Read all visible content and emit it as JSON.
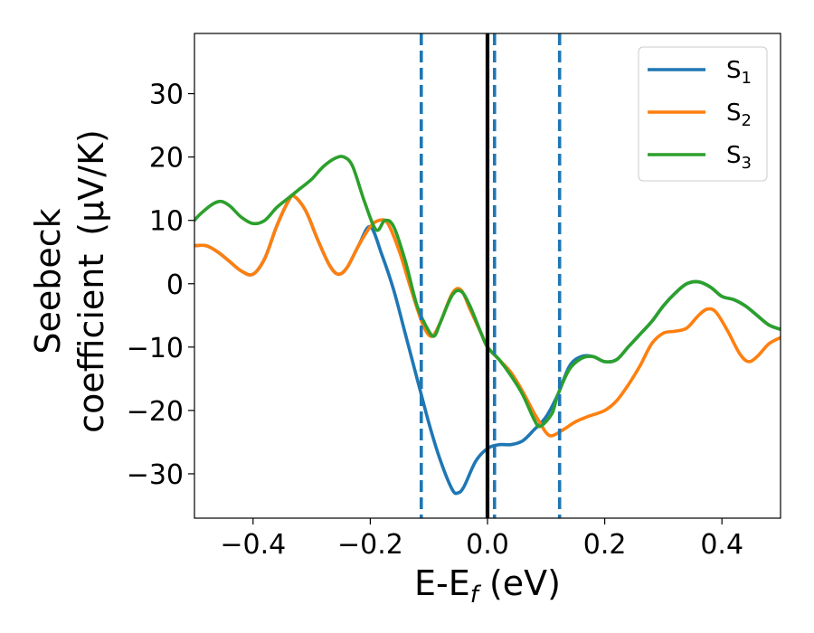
{
  "chart_data": {
    "type": "line",
    "xlabel": "E-E_f (eV)",
    "ylabel_line1": "Seebeck",
    "ylabel_line2": "coefficient",
    "ylabel_unit": "(μV/K)",
    "xlim": [
      -0.5,
      0.5
    ],
    "ylim": [
      -37,
      39.5
    ],
    "x_ticks": [
      -0.4,
      -0.2,
      0.0,
      0.2,
      0.4
    ],
    "x_tick_labels": [
      "−0.4",
      "−0.2",
      "0.0",
      "0.2",
      "0.4"
    ],
    "y_ticks": [
      -30,
      -20,
      -10,
      0,
      10,
      20,
      30
    ],
    "y_tick_labels": [
      "−30",
      "−20",
      "−10",
      "0",
      "10",
      "20",
      "30"
    ],
    "grid": false,
    "legend_placement": "top-right",
    "fermi_line": {
      "x": 0.0,
      "color": "#000000"
    },
    "vlines": {
      "x": [
        -0.113,
        0.012,
        0.123
      ],
      "color": "#1f77b4",
      "style": "dashed"
    },
    "series": [
      {
        "name": "S",
        "subscript": "1",
        "color": "#1f77b4",
        "points": [
          [
            -0.5,
            6
          ],
          [
            -0.48,
            6
          ],
          [
            -0.46,
            5
          ],
          [
            -0.44,
            3.5
          ],
          [
            -0.42,
            2
          ],
          [
            -0.4,
            1.5
          ],
          [
            -0.38,
            4
          ],
          [
            -0.36,
            9
          ],
          [
            -0.34,
            13
          ],
          [
            -0.33,
            13.8
          ],
          [
            -0.31,
            11.5
          ],
          [
            -0.29,
            7
          ],
          [
            -0.27,
            3
          ],
          [
            -0.255,
            1.5
          ],
          [
            -0.24,
            2.5
          ],
          [
            -0.22,
            6
          ],
          [
            -0.2,
            9
          ],
          [
            -0.18,
            4.5
          ],
          [
            -0.16,
            -1
          ],
          [
            -0.14,
            -8
          ],
          [
            -0.12,
            -15
          ],
          [
            -0.1,
            -22
          ],
          [
            -0.08,
            -28
          ],
          [
            -0.06,
            -32.5
          ],
          [
            -0.05,
            -33
          ],
          [
            -0.04,
            -32
          ],
          [
            -0.02,
            -28
          ],
          [
            0,
            -26
          ],
          [
            0.02,
            -25.4
          ],
          [
            0.04,
            -25.4
          ],
          [
            0.06,
            -24.8
          ],
          [
            0.08,
            -23
          ],
          [
            0.1,
            -21
          ],
          [
            0.12,
            -17.5
          ],
          [
            0.14,
            -13
          ],
          [
            0.16,
            -11.5
          ],
          [
            0.18,
            -11.5
          ],
          [
            0.2,
            -12.3
          ],
          [
            0.22,
            -12
          ],
          [
            0.24,
            -10
          ],
          [
            0.26,
            -8
          ],
          [
            0.28,
            -6
          ],
          [
            0.3,
            -3.5
          ],
          [
            0.32,
            -1.5
          ],
          [
            0.34,
            0
          ],
          [
            0.36,
            0.3
          ],
          [
            0.38,
            -0.5
          ],
          [
            0.4,
            -2
          ],
          [
            0.42,
            -2.5
          ],
          [
            0.44,
            -3.5
          ],
          [
            0.46,
            -5
          ],
          [
            0.48,
            -6.5
          ],
          [
            0.5,
            -7.2
          ]
        ]
      },
      {
        "name": "S",
        "subscript": "2",
        "color": "#ff7f0e",
        "points": [
          [
            -0.5,
            6
          ],
          [
            -0.48,
            6
          ],
          [
            -0.46,
            5
          ],
          [
            -0.44,
            3.5
          ],
          [
            -0.42,
            2
          ],
          [
            -0.4,
            1.5
          ],
          [
            -0.38,
            4
          ],
          [
            -0.36,
            9
          ],
          [
            -0.34,
            13
          ],
          [
            -0.33,
            13.8
          ],
          [
            -0.31,
            11.5
          ],
          [
            -0.29,
            7
          ],
          [
            -0.27,
            3
          ],
          [
            -0.255,
            1.5
          ],
          [
            -0.24,
            2.5
          ],
          [
            -0.22,
            6
          ],
          [
            -0.2,
            9
          ],
          [
            -0.185,
            10
          ],
          [
            -0.17,
            9.5
          ],
          [
            -0.15,
            5
          ],
          [
            -0.13,
            -1
          ],
          [
            -0.11,
            -6.5
          ],
          [
            -0.095,
            -8.3
          ],
          [
            -0.08,
            -6
          ],
          [
            -0.06,
            -1.5
          ],
          [
            -0.045,
            -1
          ],
          [
            -0.03,
            -4
          ],
          [
            -0.01,
            -8
          ],
          [
            0,
            -10
          ],
          [
            0.02,
            -12
          ],
          [
            0.04,
            -14
          ],
          [
            0.06,
            -17
          ],
          [
            0.08,
            -20.5
          ],
          [
            0.09,
            -22
          ],
          [
            0.1,
            -23.5
          ],
          [
            0.11,
            -24
          ],
          [
            0.13,
            -23
          ],
          [
            0.15,
            -21.8
          ],
          [
            0.17,
            -21
          ],
          [
            0.2,
            -20
          ],
          [
            0.22,
            -18.5
          ],
          [
            0.24,
            -16
          ],
          [
            0.26,
            -13
          ],
          [
            0.28,
            -9.5
          ],
          [
            0.3,
            -7.8
          ],
          [
            0.32,
            -7.5
          ],
          [
            0.34,
            -7
          ],
          [
            0.36,
            -5
          ],
          [
            0.375,
            -4
          ],
          [
            0.39,
            -4.5
          ],
          [
            0.41,
            -7.5
          ],
          [
            0.43,
            -11
          ],
          [
            0.445,
            -12.3
          ],
          [
            0.46,
            -11.5
          ],
          [
            0.48,
            -9.5
          ],
          [
            0.5,
            -8.5
          ]
        ]
      },
      {
        "name": "S",
        "subscript": "3",
        "color": "#2ca02c",
        "points": [
          [
            -0.5,
            10
          ],
          [
            -0.49,
            11
          ],
          [
            -0.47,
            12.5
          ],
          [
            -0.455,
            13
          ],
          [
            -0.44,
            12.3
          ],
          [
            -0.42,
            10.5
          ],
          [
            -0.4,
            9.5
          ],
          [
            -0.38,
            10
          ],
          [
            -0.36,
            12
          ],
          [
            -0.34,
            13.5
          ],
          [
            -0.32,
            15
          ],
          [
            -0.3,
            16.5
          ],
          [
            -0.28,
            18.5
          ],
          [
            -0.26,
            19.8
          ],
          [
            -0.245,
            20
          ],
          [
            -0.23,
            18.5
          ],
          [
            -0.21,
            13
          ],
          [
            -0.19,
            8.5
          ],
          [
            -0.175,
            10
          ],
          [
            -0.16,
            9
          ],
          [
            -0.14,
            3.5
          ],
          [
            -0.12,
            -3.5
          ],
          [
            -0.1,
            -7.5
          ],
          [
            -0.09,
            -8.2
          ],
          [
            -0.08,
            -6
          ],
          [
            -0.06,
            -1.8
          ],
          [
            -0.045,
            -1.2
          ],
          [
            -0.03,
            -3.5
          ],
          [
            -0.01,
            -8
          ],
          [
            0,
            -10
          ],
          [
            0.02,
            -12
          ],
          [
            0.04,
            -14.5
          ],
          [
            0.06,
            -17.5
          ],
          [
            0.08,
            -21.5
          ],
          [
            0.09,
            -22.5
          ],
          [
            0.11,
            -20.5
          ],
          [
            0.12,
            -17.5
          ],
          [
            0.14,
            -13.5
          ],
          [
            0.16,
            -11.8
          ],
          [
            0.18,
            -11.5
          ],
          [
            0.2,
            -12.3
          ],
          [
            0.22,
            -12
          ],
          [
            0.24,
            -10
          ],
          [
            0.26,
            -8
          ],
          [
            0.28,
            -6
          ],
          [
            0.3,
            -3.5
          ],
          [
            0.32,
            -1.5
          ],
          [
            0.34,
            0
          ],
          [
            0.36,
            0.3
          ],
          [
            0.38,
            -0.5
          ],
          [
            0.4,
            -2
          ],
          [
            0.42,
            -2.5
          ],
          [
            0.44,
            -3.5
          ],
          [
            0.46,
            -5
          ],
          [
            0.48,
            -6.5
          ],
          [
            0.5,
            -7.2
          ]
        ]
      }
    ]
  }
}
